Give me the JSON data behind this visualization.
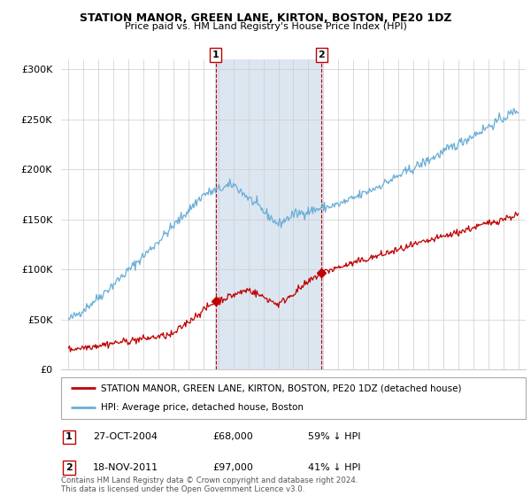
{
  "title": "STATION MANOR, GREEN LANE, KIRTON, BOSTON, PE20 1DZ",
  "subtitle": "Price paid vs. HM Land Registry's House Price Index (HPI)",
  "hpi_label": "HPI: Average price, detached house, Boston",
  "property_label": "STATION MANOR, GREEN LANE, KIRTON, BOSTON, PE20 1DZ (detached house)",
  "sale1_date": "27-OCT-2004",
  "sale1_price": 68000,
  "sale1_pct": "59% ↓ HPI",
  "sale2_date": "18-NOV-2011",
  "sale2_price": 97000,
  "sale2_pct": "41% ↓ HPI",
  "ylim": [
    0,
    310000
  ],
  "xlim_start": 1994.5,
  "xlim_end": 2025.5,
  "hpi_color": "#6baed6",
  "property_color": "#c00000",
  "sale1_x": 2004.82,
  "sale2_x": 2011.88,
  "shade_color": "#dce6f1",
  "footnote": "Contains HM Land Registry data © Crown copyright and database right 2024.\nThis data is licensed under the Open Government Licence v3.0.",
  "background_color": "#ffffff",
  "yticks": [
    0,
    50000,
    100000,
    150000,
    200000,
    250000,
    300000
  ]
}
